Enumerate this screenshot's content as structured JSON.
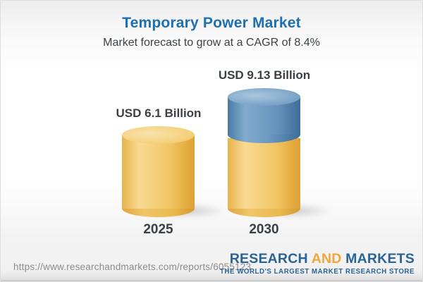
{
  "header": {
    "title": "Temporary Power Market",
    "subtitle": "Market forecast to grow at a CAGR of 8.4%"
  },
  "chart_data": {
    "type": "bar",
    "variant": "3d-cylinder",
    "title": "Temporary Power Market",
    "subtitle": "Market forecast to grow at a CAGR of 8.4%",
    "cagr_percent": 8.4,
    "unit": "USD Billion",
    "categories": [
      "2025",
      "2030"
    ],
    "values": [
      6.1,
      9.13
    ],
    "data_labels": [
      "USD 6.1 Billion",
      "USD 9.13 Billion"
    ],
    "bars": [
      {
        "category": "2025",
        "value": 6.1,
        "label": "USD 6.1 Billion",
        "segment_colors": [
          "#f2c966"
        ]
      },
      {
        "category": "2030",
        "value": 9.13,
        "label": "USD 9.13 Billion",
        "segment_colors": [
          "#f2c966",
          "#5d8fba"
        ]
      }
    ],
    "axes": "none",
    "gridlines": false,
    "legend": "none"
  },
  "footer": {
    "url": "https://www.researchandmarkets.com/reports/6055123",
    "logo": {
      "word1": "RESEARCH",
      "word2": "AND",
      "word3": "MARKETS",
      "tagline": "THE WORLD'S LARGEST MARKET RESEARCH STORE"
    }
  },
  "colors": {
    "title_blue": "#1e6fb2",
    "text_dark": "#3b4045",
    "bar_yellow": "#f2c966",
    "bar_blue": "#5d8fba",
    "url_gray": "#8c8c8c",
    "logo_blue": "#2a6496",
    "logo_orange": "#f0a63c"
  }
}
